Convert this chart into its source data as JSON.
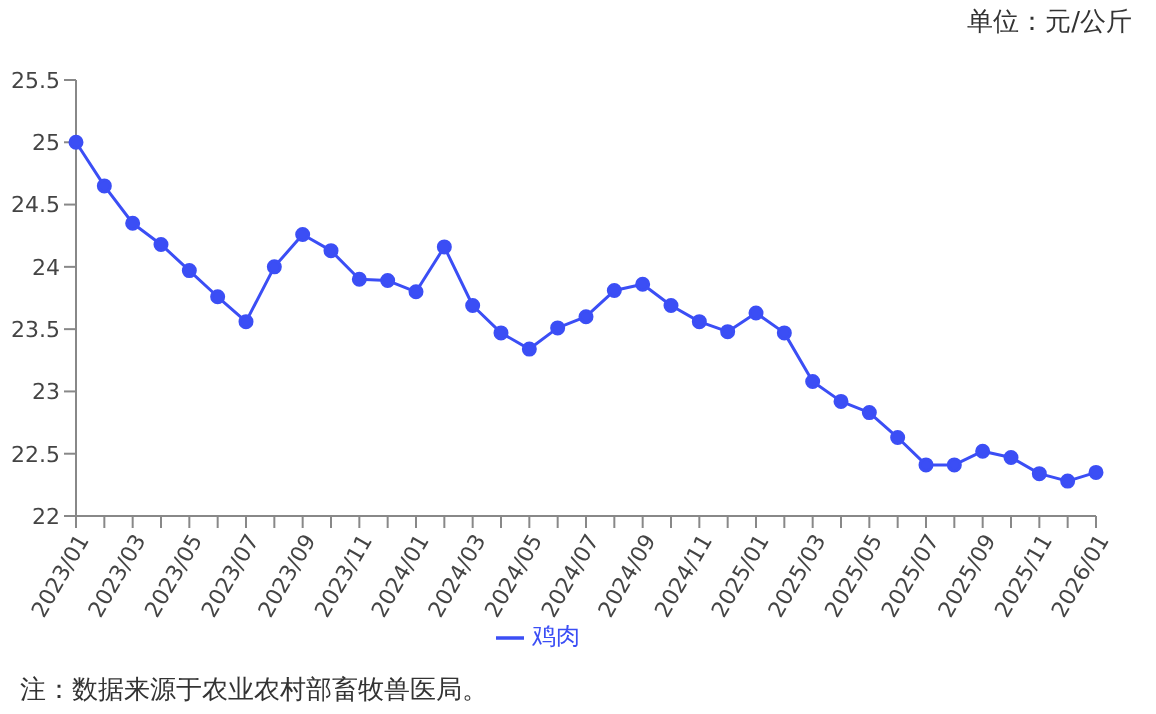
{
  "chart_data": {
    "type": "line",
    "annotations": [
      "单位：元/公斤",
      "注：数据来源于农业农村部畜牧兽医局。"
    ],
    "categories": [
      "2023/01",
      null,
      "2023/03",
      null,
      "2023/05",
      null,
      "2023/07",
      null,
      "2023/09",
      null,
      "2023/11",
      null,
      "2024/01",
      null,
      "2024/03",
      null,
      "2024/05",
      null,
      "2024/07",
      null,
      "2024/09",
      null,
      "2024/11",
      null,
      "2025/01",
      null,
      "2025/03",
      null,
      "2025/05",
      null,
      "2025/07",
      null,
      "2025/09",
      null,
      "2025/11",
      null,
      "2026/01"
    ],
    "series": [
      {
        "name": "鸡肉",
        "color": "#3b4ef5",
        "values": [
          25.0,
          24.65,
          24.35,
          24.18,
          23.97,
          23.76,
          23.56,
          24.0,
          24.26,
          24.13,
          23.9,
          23.89,
          23.8,
          24.16,
          23.69,
          23.47,
          23.34,
          23.51,
          23.6,
          23.81,
          23.86,
          23.69,
          23.56,
          23.48,
          23.63,
          23.47,
          23.08,
          22.92,
          22.83,
          22.63,
          22.41,
          22.41,
          22.52,
          22.47,
          22.34,
          22.28,
          22.35
        ]
      }
    ],
    "ylim": [
      22,
      25.5
    ],
    "yticks": [
      22,
      22.5,
      23,
      23.5,
      24,
      24.5,
      25,
      25.5
    ],
    "grid": false,
    "legend": "bottom",
    "marker": "circle",
    "line_style": "solid"
  }
}
